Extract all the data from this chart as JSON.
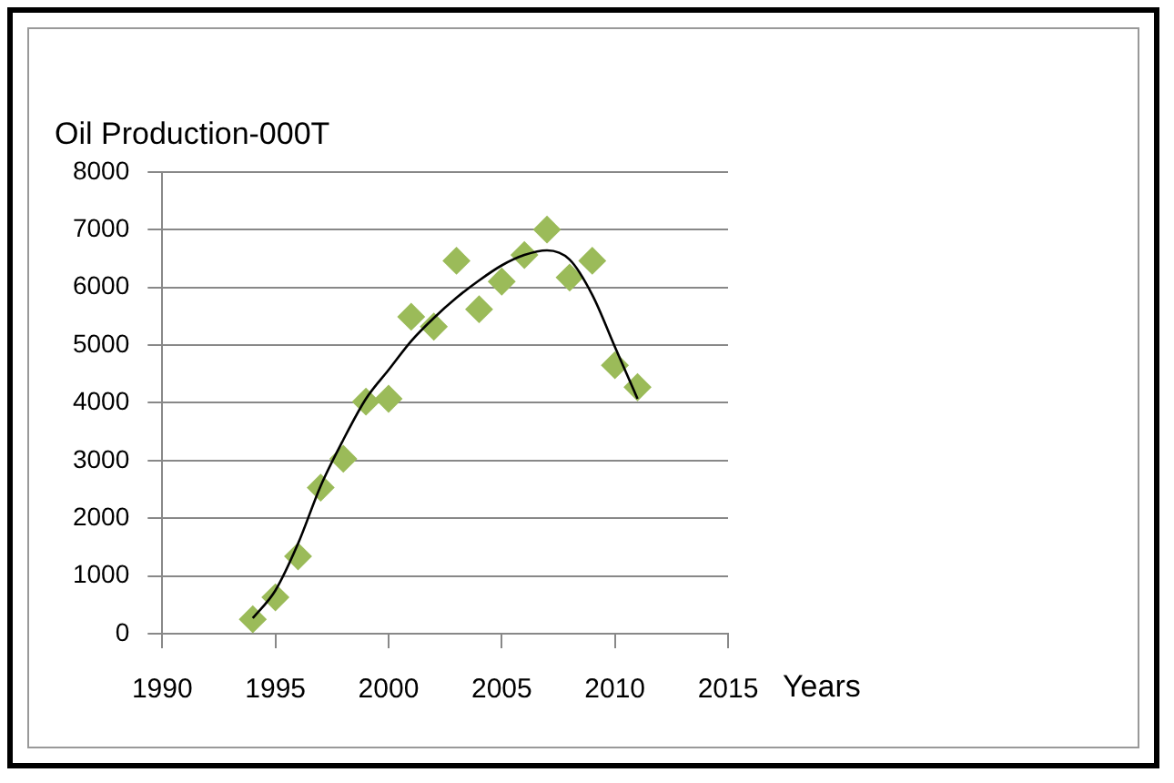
{
  "chart_data": {
    "type": "scatter",
    "title": "Oil Production-000T",
    "xlabel": "Years",
    "xlim": [
      1990,
      2015
    ],
    "xticks": [
      1990,
      1995,
      2000,
      2005,
      2010,
      2015
    ],
    "ylim": [
      0,
      8000
    ],
    "yticks": [
      0,
      1000,
      2000,
      3000,
      4000,
      5000,
      6000,
      7000,
      8000
    ],
    "grid": "y",
    "legend": false,
    "series": [
      {
        "marker": "diamond",
        "color": "#9bbb59",
        "x": [
          1994,
          1995,
          1996,
          1997,
          1998,
          1999,
          2000,
          2001,
          2002,
          2003,
          2004,
          2005,
          2006,
          2007,
          2008,
          2009,
          2010,
          2011
        ],
        "values": [
          250,
          630,
          1340,
          2530,
          3030,
          4020,
          4070,
          5490,
          5320,
          6460,
          5620,
          6100,
          6560,
          7000,
          6170,
          6460,
          4650,
          4270
        ]
      },
      {
        "type": "line",
        "marker": "none",
        "color": "#000000",
        "x": [
          1994,
          1995,
          1996,
          1997,
          1998,
          1999,
          2000,
          2001,
          2002,
          2003,
          2004,
          2005,
          2006,
          2007,
          2008,
          2009,
          2010,
          2011
        ],
        "values": [
          270,
          750,
          1560,
          2560,
          3360,
          4070,
          4570,
          5070,
          5470,
          5820,
          6120,
          6380,
          6560,
          6640,
          6480,
          5870,
          4970,
          4070
        ]
      }
    ]
  }
}
